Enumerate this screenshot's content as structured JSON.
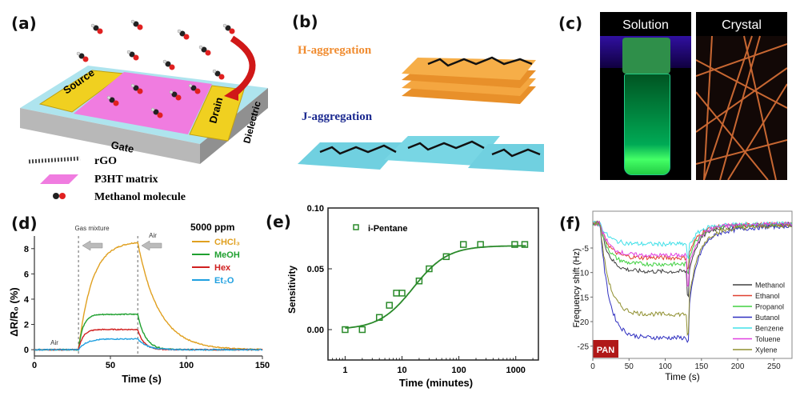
{
  "panels": {
    "a": {
      "label": "(a)",
      "device_labels": {
        "source": "Source",
        "drain": "Drain",
        "gate": "Gate",
        "dielectric": "Dielectric"
      },
      "legend": [
        "rGO",
        "P3HT matrix",
        "Methanol molecule"
      ]
    },
    "b": {
      "label": "(b)",
      "h_label": "H-aggregation",
      "j_label": "J-aggregation",
      "colors": {
        "h": "#f0a040",
        "j": "#70d0e0"
      }
    },
    "c": {
      "label": "(c)",
      "images": [
        "Solution",
        "Crystal"
      ]
    },
    "d": {
      "label": "(d)"
    },
    "e": {
      "label": "(e)"
    },
    "f": {
      "label": "(f)",
      "badge": "PAN"
    }
  },
  "chart_data": [
    {
      "id": "d",
      "type": "line",
      "xlabel": "Time (s)",
      "ylabel": "ΔR/R₀ (%)",
      "xlim": [
        0,
        150
      ],
      "ylim": [
        -0.5,
        9
      ],
      "xticks": [
        0,
        50,
        100,
        150
      ],
      "yticks": [
        0,
        2,
        4,
        6,
        8
      ],
      "legend_title": "5000 ppm",
      "annotations": [
        "Gas mixture",
        "Air",
        "Air"
      ],
      "gas_on": 29,
      "gas_off": 68,
      "series": [
        {
          "name": "CHCl₃",
          "color": "#e0a020",
          "plateau": 8.6,
          "rise_tau": 9,
          "decay_tau": 14
        },
        {
          "name": "MeOH",
          "color": "#20a030",
          "plateau": 2.8,
          "rise_tau": 3,
          "decay_tau": 5
        },
        {
          "name": "Hex",
          "color": "#d02020",
          "plateau": 1.6,
          "rise_tau": 3,
          "decay_tau": 4
        },
        {
          "name": "Et₂O",
          "color": "#20a0e0",
          "plateau": 0.85,
          "rise_tau": 5,
          "decay_tau": 6
        }
      ]
    },
    {
      "id": "e",
      "type": "scatter",
      "xlabel": "Time (minutes)",
      "ylabel": "Sensitivity",
      "xscale": "log",
      "xlim": [
        0.5,
        2500
      ],
      "ylim": [
        -0.025,
        0.1
      ],
      "xticks": [
        1,
        10,
        100,
        1000
      ],
      "yticks": [
        "0.00",
        "0.05",
        "0.10"
      ],
      "legend": "i-Pentane",
      "color": "#2a8a2a",
      "x": [
        1,
        2,
        4,
        6,
        8,
        10,
        20,
        30,
        60,
        120,
        240,
        960,
        1440
      ],
      "y": [
        0.0,
        0.0,
        0.01,
        0.02,
        0.03,
        0.03,
        0.04,
        0.05,
        0.06,
        0.07,
        0.07,
        0.07,
        0.07
      ],
      "fit": {
        "type": "sigmoid",
        "min": 0.0,
        "max": 0.069,
        "x0_log10": 1.2,
        "width": 0.3
      }
    },
    {
      "id": "f",
      "type": "line",
      "xlabel": "Time (s)",
      "ylabel": "Frequency shift (Hz)",
      "xlim": [
        0,
        275
      ],
      "ylim": [
        -27.5,
        2.5
      ],
      "xticks": [
        0,
        50,
        100,
        150,
        200,
        250
      ],
      "yticks": [
        -5,
        -10,
        -15,
        -20,
        -25
      ],
      "gas_on": 10,
      "gas_off": 130,
      "series": [
        {
          "name": "Methanol",
          "color": "#404040",
          "plateau": -9.8,
          "min": -14.5
        },
        {
          "name": "Ethanol",
          "color": "#e04030",
          "plateau": -7.0,
          "min": -9
        },
        {
          "name": "Propanol",
          "color": "#40d040",
          "plateau": -8.3,
          "min": -10
        },
        {
          "name": "Butanol",
          "color": "#3030c0",
          "plateau": -23.3,
          "min": -24
        },
        {
          "name": "Benzene",
          "color": "#40e0e8",
          "plateau": -4.2,
          "min": -7
        },
        {
          "name": "Toluene",
          "color": "#e040e0",
          "plateau": -6.5,
          "min": -13
        },
        {
          "name": "Xylene",
          "color": "#909030",
          "plateau": -18.5,
          "min": -22.5
        }
      ]
    }
  ]
}
